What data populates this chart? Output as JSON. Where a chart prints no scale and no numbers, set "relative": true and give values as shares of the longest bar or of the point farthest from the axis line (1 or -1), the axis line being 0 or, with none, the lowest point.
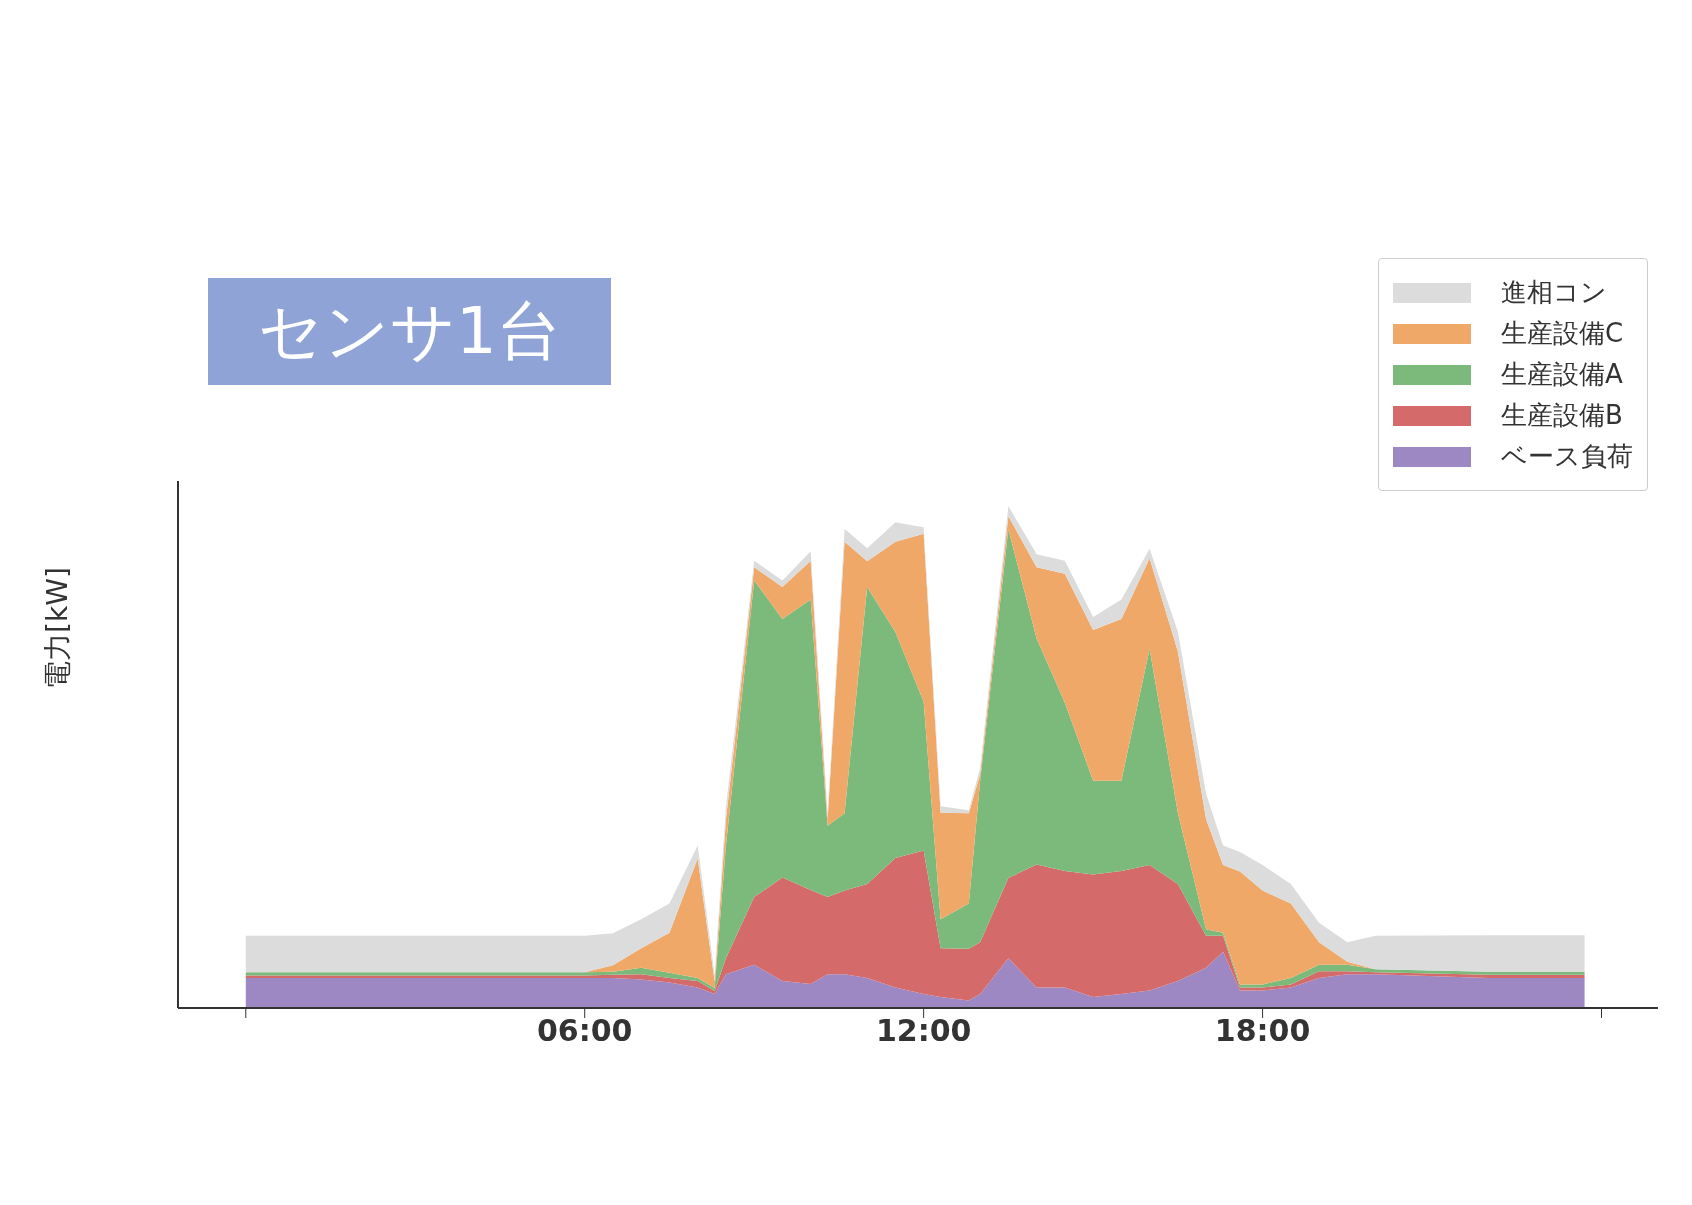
{
  "chart_data": {
    "type": "area",
    "stacked": true,
    "relative": true,
    "ylabel": "電力[kW]",
    "annotations": [
      "センサ1台"
    ],
    "legend": "top right",
    "x": [
      0,
      2,
      4,
      6,
      6.5,
      7,
      7.5,
      8,
      8.3,
      8.5,
      9,
      9.5,
      10,
      10.3,
      10.6,
      11,
      11.5,
      12,
      12.3,
      12.8,
      13,
      13.5,
      14,
      14.5,
      15,
      15.5,
      16,
      16.5,
      17,
      17.3,
      17.6,
      18,
      18.5,
      19,
      19.5,
      20,
      22,
      23.7
    ],
    "xlim": [
      -1.2,
      25
    ],
    "xticks": [
      {
        "value": 0,
        "label": null
      },
      {
        "value": 6,
        "label": "06:00"
      },
      {
        "value": 12,
        "label": "12:00"
      },
      {
        "value": 18,
        "label": "18:00"
      },
      {
        "value": 24,
        "label": null
      }
    ],
    "series": [
      {
        "name": "ベース負荷",
        "color": "#9e88c4",
        "values": [
          0.06,
          0.06,
          0.06,
          0.06,
          0.06,
          0.057,
          0.051,
          0.041,
          0.028,
          0.067,
          0.086,
          0.054,
          0.048,
          0.067,
          0.067,
          0.06,
          0.041,
          0.028,
          0.022,
          0.015,
          0.028,
          0.099,
          0.041,
          0.041,
          0.022,
          0.028,
          0.035,
          0.054,
          0.08,
          0.112,
          0.035,
          0.035,
          0.041,
          0.06,
          0.067,
          0.067,
          0.06,
          0.06
        ]
      },
      {
        "name": "生産設備B",
        "color": "#d46a6a",
        "values": [
          0.005,
          0.005,
          0.005,
          0.005,
          0.006,
          0.01,
          0.009,
          0.013,
          0.006,
          0.032,
          0.135,
          0.206,
          0.187,
          0.154,
          0.167,
          0.187,
          0.258,
          0.286,
          0.097,
          0.103,
          0.103,
          0.16,
          0.245,
          0.232,
          0.244,
          0.245,
          0.25,
          0.193,
          0.064,
          0.032,
          0.006,
          0.006,
          0.006,
          0.013,
          0.006,
          0.004,
          0.006,
          0.006
        ]
      },
      {
        "name": "生産設備A",
        "color": "#7cba7c",
        "values": [
          0.006,
          0.006,
          0.006,
          0.006,
          0.006,
          0.013,
          0.01,
          0.006,
          0.006,
          0.225,
          0.631,
          0.515,
          0.579,
          0.142,
          0.154,
          0.592,
          0.45,
          0.296,
          0.058,
          0.09,
          0.322,
          0.695,
          0.45,
          0.335,
          0.187,
          0.18,
          0.431,
          0.142,
          0.013,
          0.006,
          0.006,
          0.006,
          0.013,
          0.013,
          0.013,
          0.006,
          0.006,
          0.006
        ]
      },
      {
        "name": "生産設備C",
        "color": "#f0a868",
        "values": [
          0,
          0,
          0,
          0,
          0.013,
          0.039,
          0.08,
          0.238,
          0.013,
          0.051,
          0.026,
          0.064,
          0.077,
          0.013,
          0.541,
          0.051,
          0.18,
          0.335,
          0.212,
          0.18,
          0.013,
          0.026,
          0.142,
          0.257,
          0.3,
          0.322,
          0.18,
          0.322,
          0.219,
          0.135,
          0.225,
          0.187,
          0.148,
          0.045,
          0.006,
          0,
          0,
          0
        ]
      },
      {
        "name": "進相コン",
        "color": "#dcdcdc",
        "values": [
          0.073,
          0.073,
          0.073,
          0.073,
          0.064,
          0.058,
          0.058,
          0.026,
          0.013,
          0.026,
          0.013,
          0.013,
          0.019,
          0.013,
          0.026,
          0.026,
          0.039,
          0.013,
          0.013,
          0.006,
          0.013,
          0.02,
          0.026,
          0.026,
          0.026,
          0.039,
          0.019,
          0.039,
          0.051,
          0.039,
          0.039,
          0.051,
          0.039,
          0.039,
          0.039,
          0.067,
          0.073,
          0.073
        ]
      }
    ]
  }
}
